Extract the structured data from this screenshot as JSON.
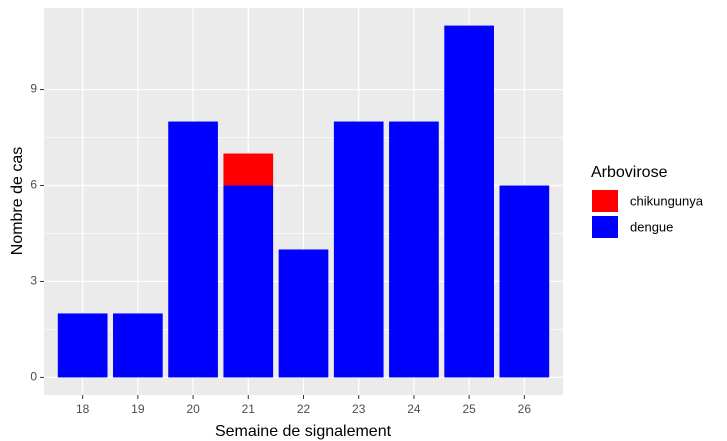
{
  "chart_data": {
    "type": "stacked-bar",
    "x_label": "Semaine de signalement",
    "y_label": "Nombre de cas",
    "legend_title": "Arbovirose",
    "legend_position": "right",
    "x": [
      18,
      19,
      20,
      21,
      22,
      23,
      24,
      25,
      26
    ],
    "series": [
      {
        "name": "chikungunya",
        "color": "#ff0000",
        "values": [
          0,
          0,
          0,
          1,
          0,
          0,
          0,
          0,
          0
        ]
      },
      {
        "name": "dengue",
        "color": "#0000ff",
        "values": [
          2,
          2,
          8,
          6,
          4,
          8,
          8,
          11,
          6
        ]
      }
    ],
    "xlim": [
      17.3,
      26.7
    ],
    "xticks": [
      18,
      19,
      20,
      21,
      22,
      23,
      24,
      25,
      26
    ],
    "ylim": [
      -0.55,
      11.55
    ],
    "yticks": [
      0,
      3,
      6,
      9
    ],
    "grid": true
  }
}
